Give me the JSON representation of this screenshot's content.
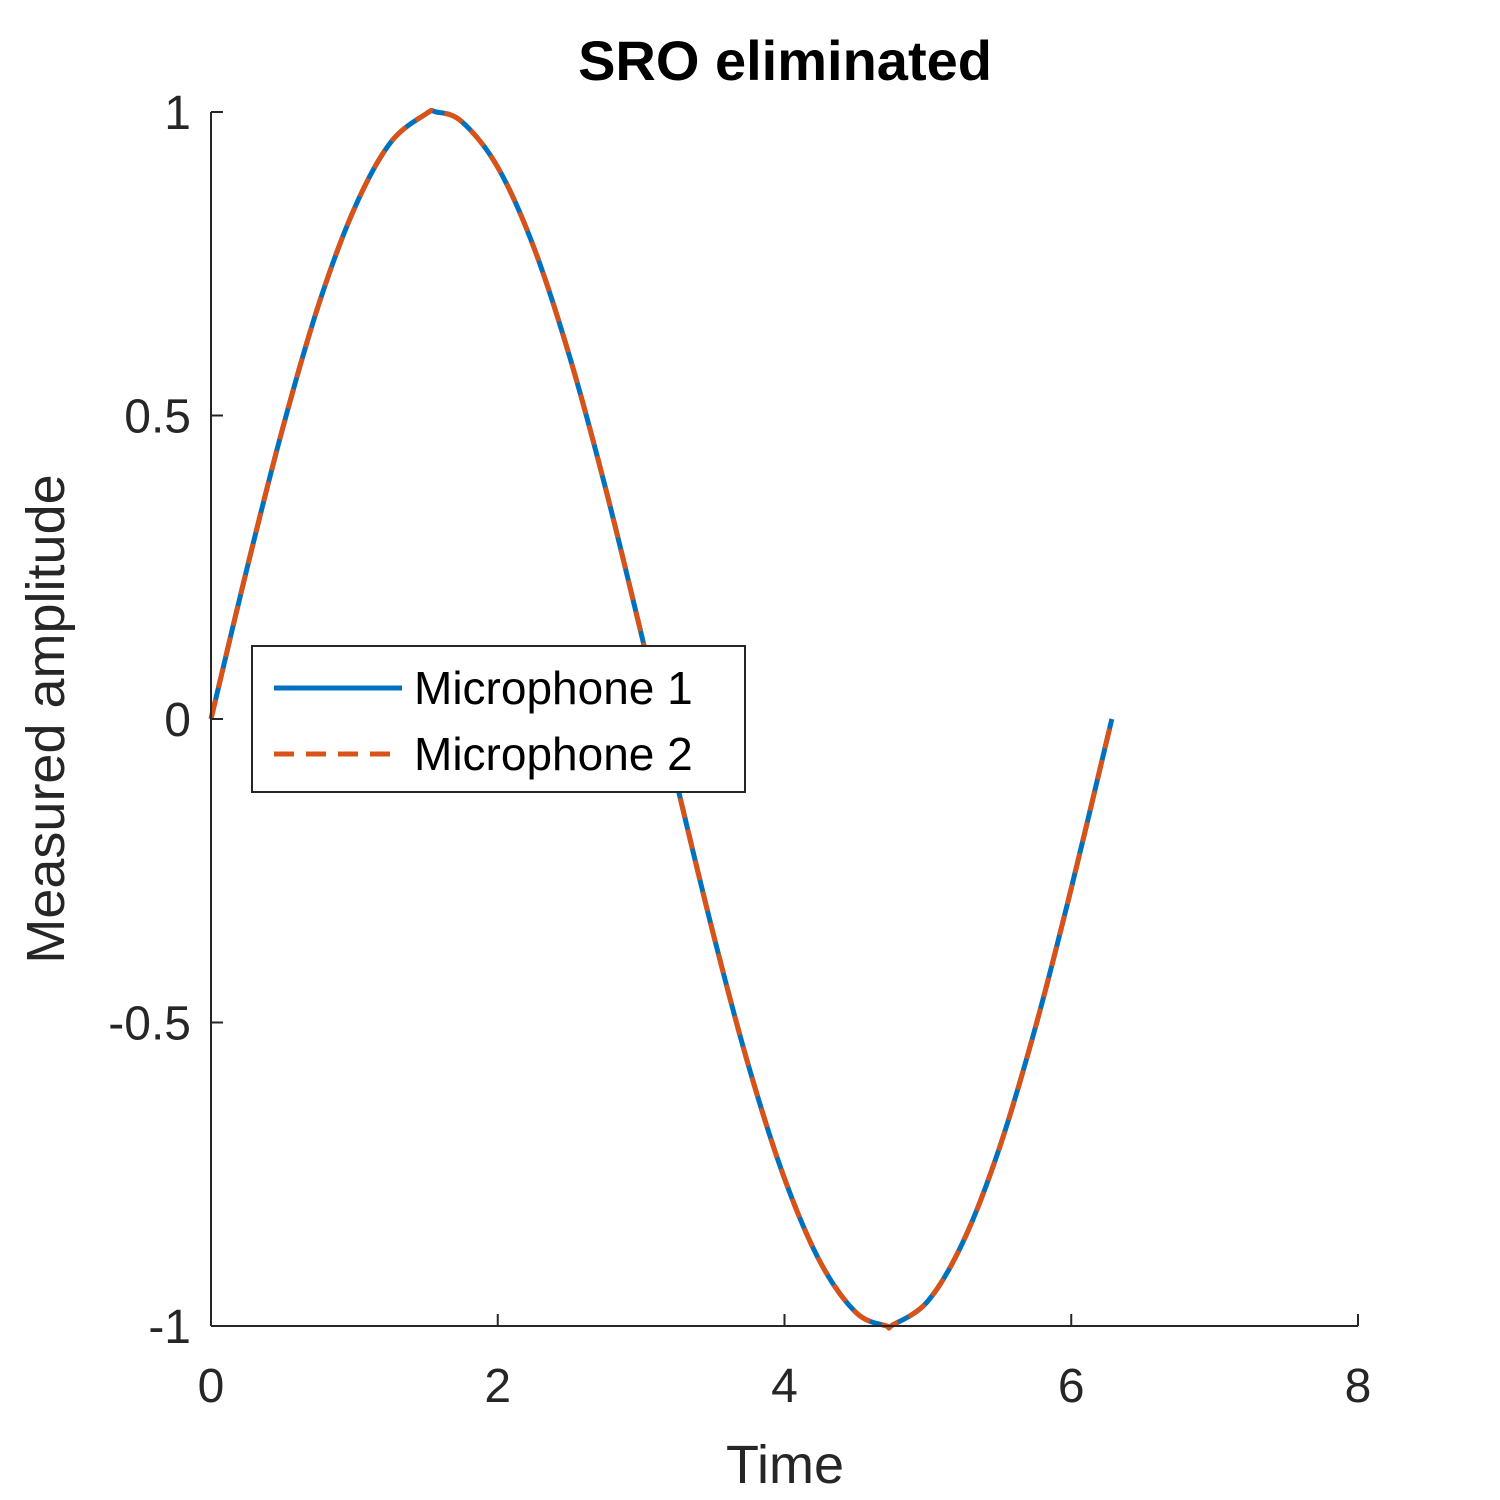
{
  "chart_data": {
    "type": "line",
    "title": "SRO eliminated",
    "xlabel": "Time",
    "ylabel": "Measured amplitude",
    "xlim": [
      0,
      8
    ],
    "ylim": [
      -1,
      1
    ],
    "xticks": [
      0,
      2,
      4,
      6,
      8
    ],
    "xtick_labels": [
      "0",
      "2",
      "4",
      "6",
      "8"
    ],
    "yticks": [
      -1,
      -0.5,
      0,
      0.5,
      1
    ],
    "ytick_labels": [
      "-1",
      "-0.5",
      "0",
      "0.5",
      "1"
    ],
    "grid": false,
    "legend_position": "west",
    "series": [
      {
        "name": "Microphone 1",
        "color": "#0072BD",
        "style": "solid",
        "x": [
          0,
          0.25,
          0.5,
          0.75,
          1.0,
          1.25,
          1.5,
          1.5708,
          1.75,
          2.0,
          2.25,
          2.5,
          2.75,
          3.0,
          3.1416,
          3.25,
          3.5,
          3.75,
          4.0,
          4.25,
          4.5,
          4.7124,
          4.75,
          5.0,
          5.25,
          5.5,
          5.75,
          6.0,
          6.2832
        ],
        "y": [
          0,
          0.247,
          0.479,
          0.682,
          0.841,
          0.949,
          0.997,
          1.0,
          0.984,
          0.909,
          0.778,
          0.598,
          0.382,
          0.141,
          0,
          -0.108,
          -0.351,
          -0.572,
          -0.757,
          -0.895,
          -0.978,
          -1.0,
          -0.999,
          -0.959,
          -0.859,
          -0.706,
          -0.508,
          -0.279,
          0
        ]
      },
      {
        "name": "Microphone 2",
        "color": "#D95319",
        "style": "dashed",
        "x": [
          0,
          0.25,
          0.5,
          0.75,
          1.0,
          1.25,
          1.5,
          1.5708,
          1.75,
          2.0,
          2.25,
          2.5,
          2.75,
          3.0,
          3.1416,
          3.25,
          3.5,
          3.75,
          4.0,
          4.25,
          4.5,
          4.7124,
          4.75,
          5.0,
          5.25,
          5.5,
          5.75,
          6.0,
          6.2832
        ],
        "y": [
          0,
          0.247,
          0.479,
          0.682,
          0.841,
          0.949,
          0.997,
          1.0,
          0.984,
          0.909,
          0.778,
          0.598,
          0.382,
          0.141,
          0,
          -0.108,
          -0.351,
          -0.572,
          -0.757,
          -0.895,
          -0.978,
          -1.0,
          -0.999,
          -0.959,
          -0.859,
          -0.706,
          -0.508,
          -0.279,
          0
        ]
      }
    ]
  }
}
